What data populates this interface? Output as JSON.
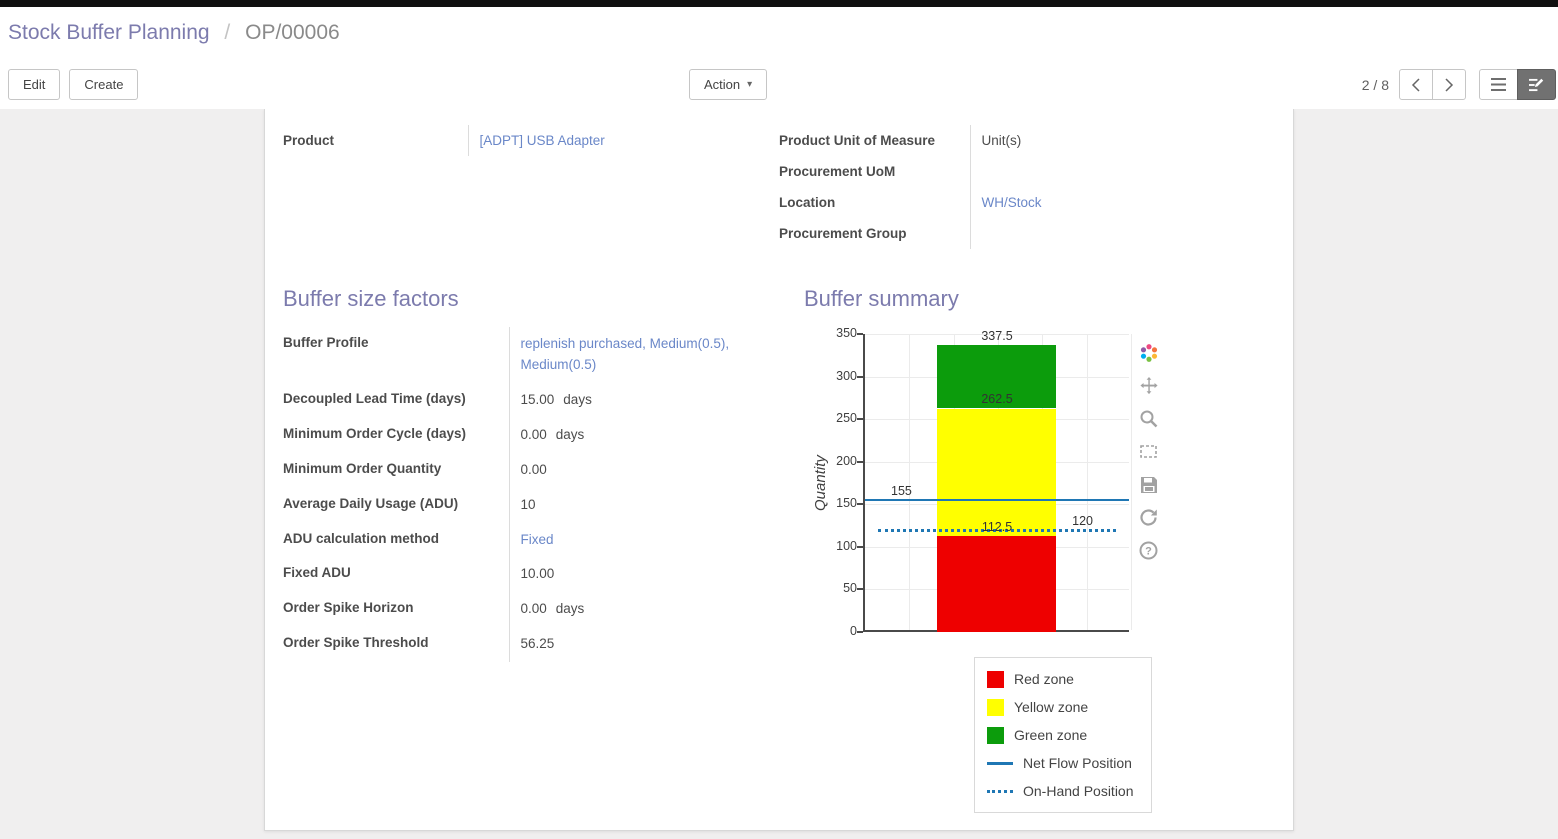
{
  "breadcrumb": {
    "parent": "Stock Buffer Planning",
    "separator": "/",
    "current": "OP/00006"
  },
  "control_panel": {
    "edit_label": "Edit",
    "create_label": "Create",
    "action_label": "Action",
    "pager": "2 / 8"
  },
  "icons": {
    "action_caret": "▾",
    "pager": [
      "chevron-left-icon",
      "chevron-right-icon"
    ],
    "view_switcher": [
      "list-view-icon",
      "form-view-icon"
    ],
    "chart_modebar": [
      "plotly-logo-icon",
      "pan-icon",
      "zoom-icon",
      "box-select-icon",
      "save-icon",
      "reset-axes-icon",
      "help-icon"
    ]
  },
  "colors": {
    "accent": "#7c7bad",
    "link": "#6a87c8",
    "topbar": "#101010"
  },
  "form": {
    "top_left": [
      {
        "label": "Product",
        "value": "[ADPT] USB Adapter"
      }
    ],
    "top_right": [
      {
        "label": "Product Unit of Measure",
        "value": "Unit(s)"
      },
      {
        "label": "Procurement UoM",
        "value": ""
      },
      {
        "label": "Location",
        "value": "WH/Stock"
      },
      {
        "label": "Procurement Group",
        "value": ""
      }
    ],
    "buffer_factors": {
      "title": "Buffer size factors",
      "fields": [
        {
          "label": "Buffer Profile",
          "value": "replenish purchased, Medium(0.5), Medium(0.5)"
        },
        {
          "label": "Decoupled Lead Time (days)",
          "value": "15.00",
          "suffix": "days"
        },
        {
          "label": "Minimum Order Cycle (days)",
          "value": "0.00",
          "suffix": "days"
        },
        {
          "label": "Minimum Order Quantity",
          "value": "0.00"
        },
        {
          "label": "Average Daily Usage (ADU)",
          "value": "10"
        },
        {
          "label": "ADU calculation method",
          "value": "Fixed"
        },
        {
          "label": "Fixed ADU",
          "value": "10.00"
        },
        {
          "label": "Order Spike Horizon",
          "value": "0.00",
          "suffix": "days"
        },
        {
          "label": "Order Spike Threshold",
          "value": "56.25"
        }
      ]
    },
    "buffer_summary": {
      "title": "Buffer summary"
    }
  },
  "chart_data": {
    "type": "bar",
    "title": "",
    "xlabel": "",
    "ylabel": "Quantity",
    "ylim": [
      0,
      350
    ],
    "yticks": [
      0,
      50,
      100,
      150,
      200,
      250,
      300,
      350
    ],
    "grid": true,
    "zones": [
      {
        "name": "Red zone",
        "from": 0,
        "to": 112.5,
        "color": "#ee0000"
      },
      {
        "name": "Yellow zone",
        "from": 112.5,
        "to": 262.5,
        "color": "#ffff00"
      },
      {
        "name": "Green zone",
        "from": 262.5,
        "to": 337.5,
        "color": "#0c9c0c"
      }
    ],
    "lines": [
      {
        "name": "Net Flow Position",
        "value": 155,
        "style": "solid",
        "color": "#1f77b4"
      },
      {
        "name": "On-Hand Position",
        "value": 120,
        "style": "dotted",
        "color": "#1f77b4"
      }
    ],
    "annotations": [
      {
        "text": "337.5",
        "value": 346,
        "x": "center"
      },
      {
        "text": "262.5",
        "value": 272,
        "x": "center"
      },
      {
        "text": "155",
        "value": 164,
        "x": "left"
      },
      {
        "text": "112.5",
        "value": 122,
        "x": "center"
      },
      {
        "text": "120",
        "value": 129,
        "x": "right"
      }
    ],
    "legend_position": "bottom-right",
    "legend": [
      {
        "label": "Red zone",
        "swatch": "square",
        "color": "#ee0000"
      },
      {
        "label": "Yellow zone",
        "swatch": "square",
        "color": "#ffff00"
      },
      {
        "label": "Green zone",
        "swatch": "square",
        "color": "#0c9c0c"
      },
      {
        "label": "Net Flow Position",
        "swatch": "line",
        "color": "#1f77b4"
      },
      {
        "label": "On-Hand Position",
        "swatch": "dotted",
        "color": "#1f77b4"
      }
    ]
  }
}
